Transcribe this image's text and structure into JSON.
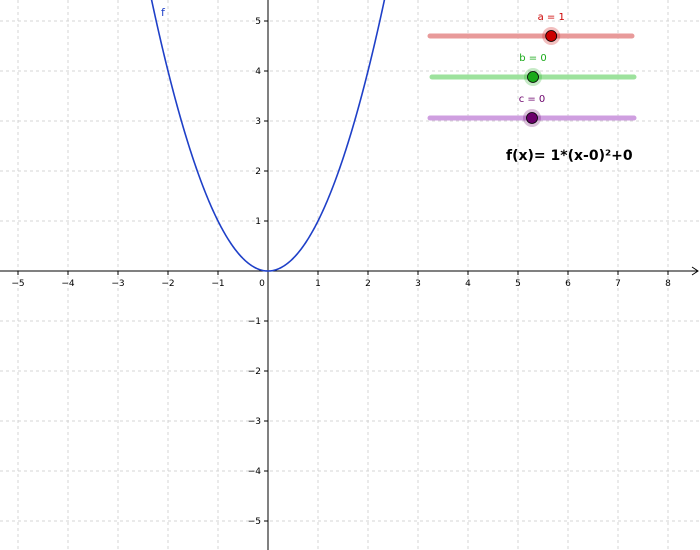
{
  "function": {
    "name": "f",
    "formula_text": "f(x)= 1*(x-0)²+0",
    "curve_color": "#1f40c8"
  },
  "sliders": [
    {
      "name": "a",
      "label": "a = 1",
      "value": 1,
      "min": -5,
      "max": 5,
      "color": "#cc0000",
      "track_color": "#e89a9a"
    },
    {
      "name": "b",
      "label": "b = 0",
      "value": 0,
      "min": -5,
      "max": 5,
      "color": "#1aaa1a",
      "track_color": "#9de29d"
    },
    {
      "name": "c",
      "label": "c = 0",
      "value": 0,
      "min": -5,
      "max": 5,
      "color": "#6b006b",
      "track_color": "#cf9fe0"
    }
  ],
  "axes": {
    "x_ticks": [
      "−5",
      "−4",
      "−3",
      "−2",
      "−1",
      "0",
      "1",
      "2",
      "3",
      "4",
      "5",
      "6",
      "7",
      "8"
    ],
    "y_ticks": [
      "−5",
      "−4",
      "−3",
      "−2",
      "−1",
      "1",
      "2",
      "3",
      "4",
      "5"
    ],
    "xlim": [
      -5.3,
      8.6
    ],
    "ylim": [
      -5.55,
      5.4
    ],
    "grid": true
  },
  "chart_data": {
    "type": "line",
    "title": "",
    "xlabel": "",
    "ylabel": "",
    "series": [
      {
        "name": "f",
        "x": [
          -2.3,
          -2,
          -1.5,
          -1,
          -0.5,
          0,
          0.5,
          1,
          1.5,
          2,
          2.3
        ],
        "values": [
          5.29,
          4,
          2.25,
          1,
          0.25,
          0,
          0.25,
          1,
          2.25,
          4,
          5.29
        ]
      }
    ],
    "xlim": [
      -5.3,
      8.6
    ],
    "ylim": [
      -5.55,
      5.4
    ],
    "grid": true
  }
}
